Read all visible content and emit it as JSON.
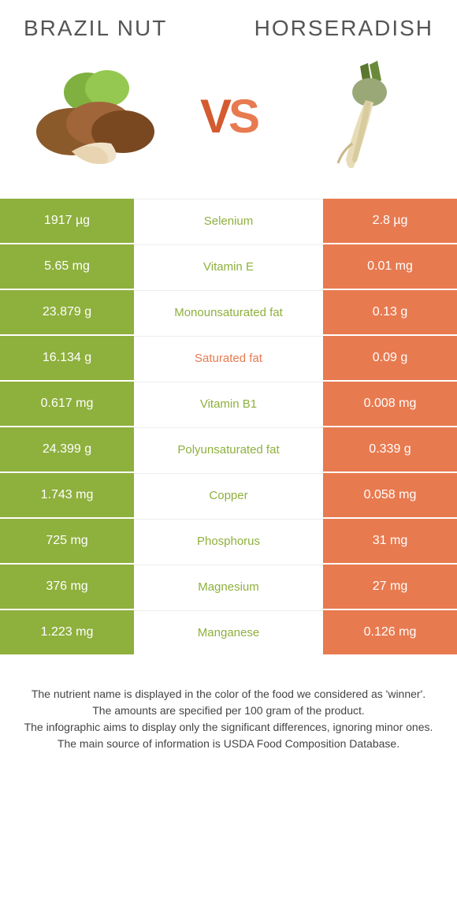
{
  "title_left": "BRAZIL NUT",
  "title_right": "HORSERADISH",
  "vs_text": "VS",
  "colors": {
    "left": "#8eb03d",
    "right": "#e87a50",
    "green_text": "#8eb03d",
    "orange_text": "#e87a50",
    "row_gap": "#ffffff",
    "legend_text": "#444444",
    "title_text": "#555555"
  },
  "rows": [
    {
      "left": "1917 µg",
      "mid": "Selenium",
      "right": "2.8 µg",
      "winner": "left"
    },
    {
      "left": "5.65 mg",
      "mid": "Vitamin E",
      "right": "0.01 mg",
      "winner": "left"
    },
    {
      "left": "23.879 g",
      "mid": "Monounsaturated fat",
      "right": "0.13 g",
      "winner": "left"
    },
    {
      "left": "16.134 g",
      "mid": "Saturated fat",
      "right": "0.09 g",
      "winner": "right"
    },
    {
      "left": "0.617 mg",
      "mid": "Vitamin B1",
      "right": "0.008 mg",
      "winner": "left"
    },
    {
      "left": "24.399 g",
      "mid": "Polyunsaturated fat",
      "right": "0.339 g",
      "winner": "left"
    },
    {
      "left": "1.743 mg",
      "mid": "Copper",
      "right": "0.058 mg",
      "winner": "left"
    },
    {
      "left": "725 mg",
      "mid": "Phosphorus",
      "right": "31 mg",
      "winner": "left"
    },
    {
      "left": "376 mg",
      "mid": "Magnesium",
      "right": "27 mg",
      "winner": "left"
    },
    {
      "left": "1.223 mg",
      "mid": "Manganese",
      "right": "0.126 mg",
      "winner": "left"
    }
  ],
  "legend": [
    "The nutrient name is displayed in the color of the food we considered as 'winner'.",
    "The amounts are specified per 100 gram of the product.",
    "The infographic aims to display only the significant differences, ignoring minor ones.",
    "The main source of information is USDA Food Composition Database."
  ]
}
